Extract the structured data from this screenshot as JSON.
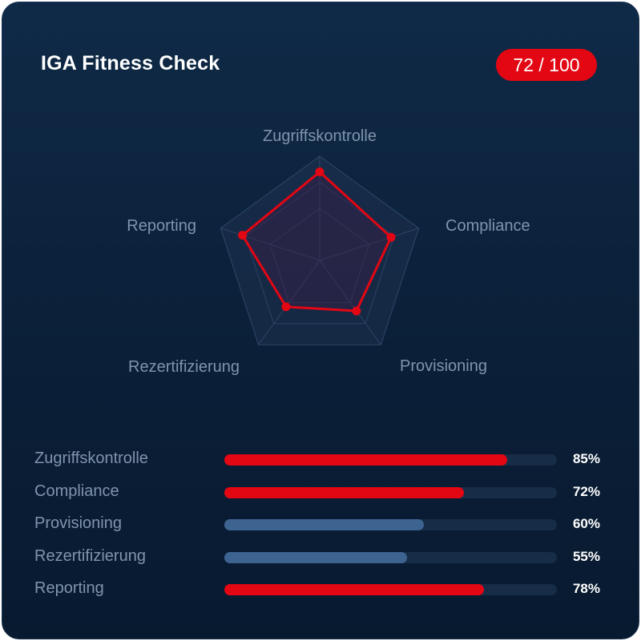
{
  "header": {
    "title": "IGA Fitness Check",
    "score_badge": "72 / 100"
  },
  "colors": {
    "accent": "#e30613",
    "secondary": "#3d6391",
    "label": "#7f95ad",
    "track": "#172c46"
  },
  "chart_data": [
    {
      "type": "radar",
      "axes": [
        "Zugriffskontrolle",
        "Compliance",
        "Provisioning",
        "Rezertifizierung",
        "Reporting"
      ],
      "values": [
        85,
        72,
        60,
        55,
        78
      ],
      "rlim": [
        0,
        100
      ],
      "grid_levels": [
        0.5,
        0.75,
        1
      ]
    },
    {
      "type": "bar",
      "orientation": "horizontal",
      "categories": [
        "Zugriffskontrolle",
        "Compliance",
        "Provisioning",
        "Rezertifizierung",
        "Reporting"
      ],
      "values": [
        85,
        72,
        60,
        55,
        78
      ],
      "value_labels": [
        "85%",
        "72%",
        "60%",
        "55%",
        "78%"
      ],
      "bar_colors": [
        "#e30613",
        "#e30613",
        "#3d6391",
        "#3d6391",
        "#e30613"
      ],
      "xlim": [
        0,
        100
      ]
    }
  ]
}
